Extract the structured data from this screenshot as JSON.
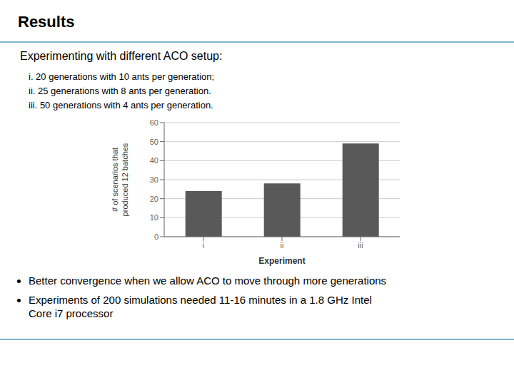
{
  "chart_data": {
    "type": "bar",
    "title": "Results",
    "subtitle": "Experimenting with different ACO setup:",
    "annotations": [
      "i. 20 generations with 10 ants per generation;",
      "ii. 25 generations with 8 ants per generation.",
      "iii. 50 generations with 4 ants per generation.",
      "Better convergence when we allow ACO to move through more generations",
      "Experiments of 200 simulations needed 11-16 minutes in a 1.8 GHz Intel\nCore i7 processor"
    ],
    "categories": [
      "i",
      "ii",
      "iii"
    ],
    "values": [
      24,
      28,
      49
    ],
    "color": "#595959",
    "xlabel": "Experiment",
    "ylabel": "# of scenarios that\nproduced 12 batches",
    "ylim": [
      0,
      60
    ],
    "yticks": [
      0,
      10,
      20,
      30,
      40,
      50,
      60
    ],
    "grid": true
  }
}
